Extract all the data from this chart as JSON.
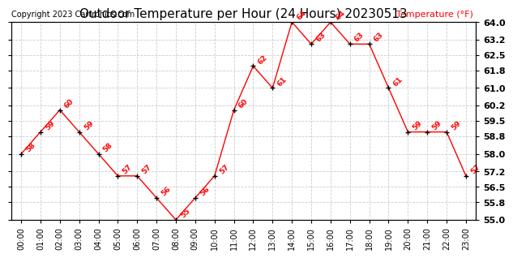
{
  "title": "Outdoor Temperature per Hour (24 Hours) 20230513",
  "copyright_text": "Copyright 2023 Cartronics.com",
  "legend_label": "Temperature (°F)",
  "hours": [
    "00:00",
    "01:00",
    "02:00",
    "03:00",
    "04:00",
    "05:00",
    "06:00",
    "07:00",
    "08:00",
    "09:00",
    "10:00",
    "11:00",
    "12:00",
    "13:00",
    "14:00",
    "15:00",
    "16:00",
    "17:00",
    "18:00",
    "19:00",
    "20:00",
    "21:00",
    "22:00",
    "23:00"
  ],
  "temperatures": [
    58,
    59,
    60,
    59,
    58,
    57,
    57,
    56,
    55,
    56,
    57,
    60,
    62,
    61,
    64,
    63,
    64,
    63,
    63,
    61,
    59,
    59,
    59,
    57
  ],
  "line_color": "red",
  "marker_color": "black",
  "label_color": "red",
  "grid_color": "#cccccc",
  "bg_color": "white",
  "ylim_min": 55.0,
  "ylim_max": 64.0,
  "yticks": [
    55.0,
    55.8,
    56.5,
    57.2,
    58.0,
    58.8,
    59.5,
    60.2,
    61.0,
    61.8,
    62.5,
    63.2,
    64.0
  ],
  "title_fontsize": 11,
  "label_fontsize": 6.5,
  "tick_fontsize": 7,
  "copyright_fontsize": 7,
  "legend_fontsize": 8,
  "ytick_fontsize": 8
}
